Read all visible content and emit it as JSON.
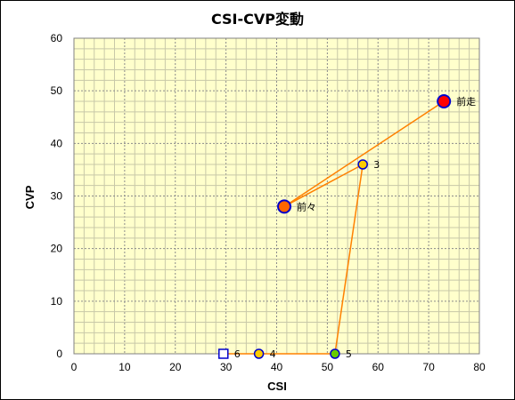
{
  "chart_data": {
    "type": "scatter",
    "title": "CSI-CVP変動",
    "xlabel": "CSI",
    "ylabel": "CVP",
    "xlim": [
      0,
      80
    ],
    "ylim": [
      0,
      60
    ],
    "xticks": [
      0,
      10,
      20,
      30,
      40,
      50,
      60,
      70,
      80
    ],
    "yticks": [
      0,
      10,
      20,
      30,
      40,
      50,
      60
    ],
    "grid": true,
    "plot_background": "#ffffcc",
    "line_color": "#ff8000",
    "points": [
      {
        "label": "前走",
        "x": 73,
        "y": 48,
        "marker": "circle-large",
        "fill": "#ff0000",
        "stroke": "#0000cc"
      },
      {
        "label": "前々",
        "x": 41.5,
        "y": 28,
        "marker": "circle-large",
        "fill": "#ff6600",
        "stroke": "#0000cc"
      },
      {
        "label": "3",
        "x": 57,
        "y": 36,
        "marker": "circle",
        "fill": "#ffcc00",
        "stroke": "#0000cc"
      },
      {
        "label": "4",
        "x": 36.5,
        "y": 0,
        "marker": "circle",
        "fill": "#ffcc00",
        "stroke": "#0000cc"
      },
      {
        "label": "5",
        "x": 51.5,
        "y": 0,
        "marker": "circle",
        "fill": "#66cc00",
        "stroke": "#0000cc"
      },
      {
        "label": "6",
        "x": 29.5,
        "y": 0,
        "marker": "square",
        "fill": "#ffffff",
        "stroke": "#0000cc"
      }
    ],
    "path_order": [
      5,
      3,
      4,
      2,
      1,
      0
    ]
  }
}
